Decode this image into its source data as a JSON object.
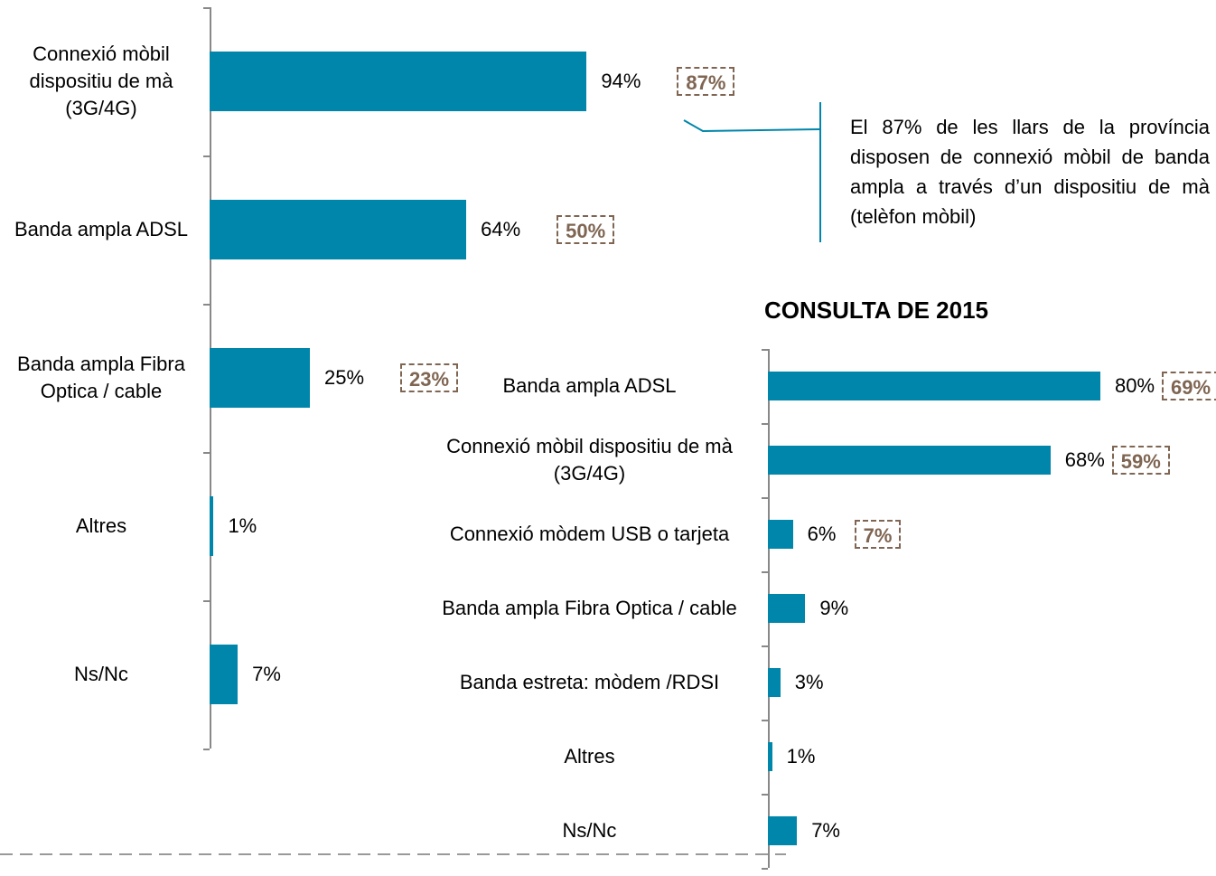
{
  "chart_data": [
    {
      "type": "bar",
      "categories": [
        "Connexió mòbil dispositiu de mà (3G/4G)",
        "Banda ampla ADSL",
        "Banda ampla Fibra Optica / cable",
        "Altres",
        "Ns/Nc"
      ],
      "values": [
        94,
        64,
        25,
        1,
        7
      ],
      "value_labels": [
        "94%",
        "64%",
        "25%",
        "1%",
        "7%"
      ],
      "comparison_values": [
        87,
        50,
        23,
        null,
        null
      ],
      "comparison_labels": [
        "87%",
        "50%",
        "23%",
        null,
        null
      ],
      "color": "#0086ab",
      "comparison_color": "#7f6552",
      "xlim": [
        0,
        100
      ],
      "annotation": "El 87% de les llars de la província disposen de connexió mòbil de banda ampla a través d’un dispositiu de mà (telèfon mòbil)"
    },
    {
      "type": "bar",
      "title": "CONSULTA DE 2015",
      "categories": [
        "Banda ampla ADSL",
        "Connexió mòbil dispositiu de mà (3G/4G)",
        "Connexió mòdem USB o tarjeta",
        "Banda ampla Fibra Optica / cable",
        "Banda estreta: mòdem /RDSI",
        "Altres",
        "Ns/Nc"
      ],
      "values": [
        80,
        68,
        6,
        9,
        3,
        1,
        7
      ],
      "value_labels": [
        "80%",
        "68%",
        "6%",
        "9%",
        "3%",
        "1%",
        "7%"
      ],
      "comparison_values": [
        69,
        59,
        7,
        null,
        null,
        null,
        null
      ],
      "comparison_labels": [
        "69%",
        "59%",
        "7%",
        null,
        null,
        null,
        null
      ],
      "color": "#0086ab",
      "comparison_color": "#7f6552",
      "xlim": [
        0,
        100
      ]
    }
  ]
}
